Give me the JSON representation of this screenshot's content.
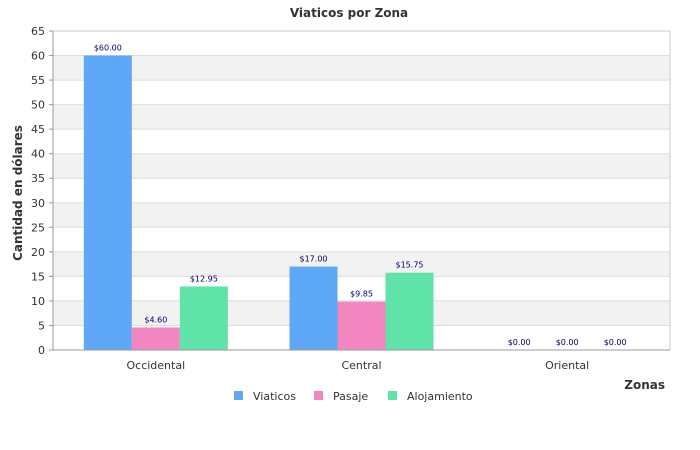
{
  "chart_data": {
    "type": "bar",
    "title": "Viaticos por Zona",
    "xlabel": "Zonas",
    "ylabel": "Cantidad en dólares",
    "categories": [
      "Occidental",
      "Central",
      "Oriental"
    ],
    "ylim": [
      0,
      65
    ],
    "yticks": [
      0,
      5,
      10,
      15,
      20,
      25,
      30,
      35,
      40,
      45,
      50,
      55,
      60,
      65
    ],
    "grid": true,
    "legend_position": "bottom",
    "series": [
      {
        "name": "Viaticos",
        "color": "#5fa7f7",
        "values": [
          60,
          17,
          0
        ],
        "labels": [
          "$60.00",
          "$17.00",
          "$0.00"
        ]
      },
      {
        "name": "Pasaje",
        "color": "#f286c0",
        "values": [
          4.6,
          9.85,
          0
        ],
        "labels": [
          "$4.60",
          "$9.85",
          "$0.00"
        ]
      },
      {
        "name": "Alojamiento",
        "color": "#5fe3a8",
        "values": [
          12.95,
          15.75,
          0
        ],
        "labels": [
          "$12.95",
          "$15.75",
          "$0.00"
        ]
      }
    ]
  }
}
